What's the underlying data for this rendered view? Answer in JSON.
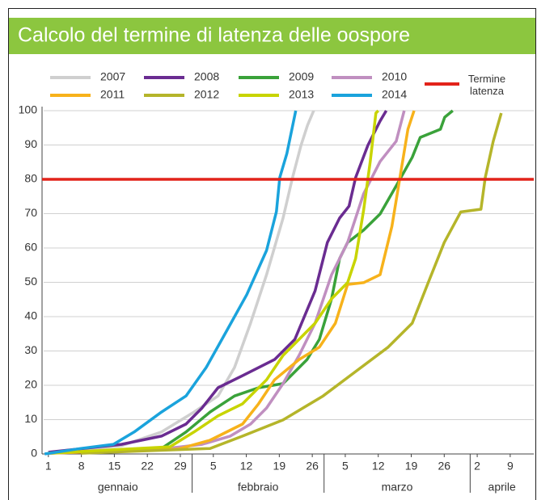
{
  "chart_data": {
    "type": "line",
    "title": "Calcolo del termine di latenza delle oospore",
    "xlim": [
      0,
      104
    ],
    "ylim": [
      0,
      100
    ],
    "yticks": [
      0,
      10,
      20,
      30,
      40,
      50,
      60,
      70,
      80,
      90,
      100
    ],
    "xticks": [
      1,
      8,
      15,
      22,
      29,
      {
        "value": 36,
        "label": "5"
      },
      {
        "value": 43,
        "label": "12"
      },
      {
        "value": 50,
        "label": "19"
      },
      {
        "value": 57,
        "label": "26"
      },
      {
        "value": 64,
        "label": "5"
      },
      {
        "value": 71,
        "label": "12"
      },
      {
        "value": 78,
        "label": "19"
      },
      {
        "value": 85,
        "label": "26"
      },
      {
        "value": 92,
        "label": "2"
      },
      {
        "value": 99,
        "label": "9"
      }
    ],
    "x_groups": [
      {
        "label": "gennaio",
        "range": [
          0,
          31.5
        ]
      },
      {
        "label": "febbraio",
        "range": [
          31.5,
          59.5
        ]
      },
      {
        "label": "marzo",
        "range": [
          59.5,
          90.5
        ]
      },
      {
        "label": "aprile",
        "range": [
          90.5,
          104
        ]
      }
    ],
    "grid": true,
    "threshold": {
      "value": 80,
      "label": "Termine latenza",
      "color": "#e2231a"
    },
    "series": [
      {
        "name": "2007",
        "color": "#cfcfcf",
        "x": [
          1,
          16.5,
          25,
          31.9,
          37,
          40.5,
          43.9,
          47.3,
          50.8,
          52.8,
          54.6,
          56,
          57.3
        ],
        "values": [
          0.2,
          2.4,
          6.4,
          12.2,
          16.9,
          25.2,
          38.1,
          52.2,
          68.7,
          80.5,
          89.9,
          95.8,
          100
        ]
      },
      {
        "name": "2008",
        "color": "#6a2c91",
        "x": [
          1,
          16.5,
          25,
          30.2,
          33.6,
          37,
          42.2,
          49,
          53.3,
          57.6,
          60.2,
          62.8,
          64.8,
          66.2,
          68.8,
          71.4,
          72.7
        ],
        "values": [
          0.5,
          2.8,
          5.2,
          8.7,
          13.4,
          19.3,
          22.8,
          27.5,
          33.4,
          47.5,
          61.6,
          68.7,
          72.2,
          80.5,
          89.9,
          97,
          100
        ]
      },
      {
        "name": "2009",
        "color": "#3aa23a",
        "x": [
          1,
          25,
          30.2,
          35.3,
          40.5,
          45.6,
          50.8,
          55.9,
          58.5,
          61.1,
          62.8,
          64.5,
          67.9,
          71.4,
          74.8,
          78.2,
          79.9,
          84.2,
          85.1,
          86.8
        ],
        "values": [
          0.2,
          1.6,
          6.4,
          12.2,
          16.9,
          19.3,
          20.5,
          27.5,
          33.4,
          45.2,
          56.9,
          61.6,
          65.2,
          69.9,
          78.1,
          86.4,
          92.2,
          94.6,
          98.1,
          100
        ]
      },
      {
        "name": "2010",
        "color": "#c08fc0",
        "x": [
          1,
          25,
          33.6,
          39.6,
          43.9,
          47.3,
          50.8,
          54.2,
          57.6,
          61.1,
          64.5,
          67.9,
          71.4,
          74.8,
          76.5
        ],
        "values": [
          0.2,
          1.4,
          2.8,
          5.2,
          8.7,
          13.4,
          20.5,
          28.7,
          38.1,
          52.2,
          61.6,
          75.8,
          85.2,
          91.1,
          100
        ]
      },
      {
        "name": "2011",
        "color": "#f7b21b",
        "x": [
          1,
          28.5,
          35.3,
          42.2,
          45.6,
          49,
          54.2,
          58.5,
          61.9,
          64.5,
          67.9,
          71.4,
          73.9,
          75.6,
          77.3,
          78.6
        ],
        "values": [
          0.2,
          1.4,
          4,
          8.7,
          14.6,
          21.6,
          27.5,
          31.1,
          38.1,
          49.4,
          49.9,
          52.2,
          66.3,
          80.5,
          94.6,
          100
        ]
      },
      {
        "name": "2012",
        "color": "#b5b52a",
        "x": [
          7.9,
          35.3,
          42.2,
          50.8,
          59.3,
          66.2,
          73.1,
          78.2,
          81.6,
          85,
          88.5,
          92.8,
          93.7,
          95.4,
          97.1
        ],
        "values": [
          0.2,
          1.6,
          5.2,
          9.9,
          16.9,
          24,
          31.1,
          38.1,
          49.9,
          61.6,
          70.5,
          71.3,
          80.5,
          91.1,
          99.3
        ]
      },
      {
        "name": "2013",
        "color": "#c8d400",
        "x": [
          1,
          26.8,
          31.9,
          37,
          42.2,
          47.3,
          50.8,
          54.2,
          57.6,
          61.1,
          64.5,
          66.2,
          67.9,
          69.3,
          70.5,
          71
        ],
        "values": [
          0.2,
          2.1,
          6.4,
          11.1,
          14.6,
          21.6,
          28.7,
          33.4,
          38.1,
          45.2,
          49.9,
          56.9,
          71,
          85.2,
          99.3,
          100
        ]
      },
      {
        "name": "2014",
        "color": "#1aa3dc",
        "x": [
          0.2,
          7.9,
          14.8,
          19.2,
          25,
          30.2,
          34.5,
          38.8,
          43.1,
          47.3,
          49.4,
          50.1,
          51.6,
          53.5
        ],
        "values": [
          0,
          1.6,
          2.8,
          6.4,
          12.2,
          16.9,
          25.2,
          35.8,
          46.4,
          59.3,
          70.6,
          80.5,
          87.5,
          100
        ]
      }
    ]
  }
}
